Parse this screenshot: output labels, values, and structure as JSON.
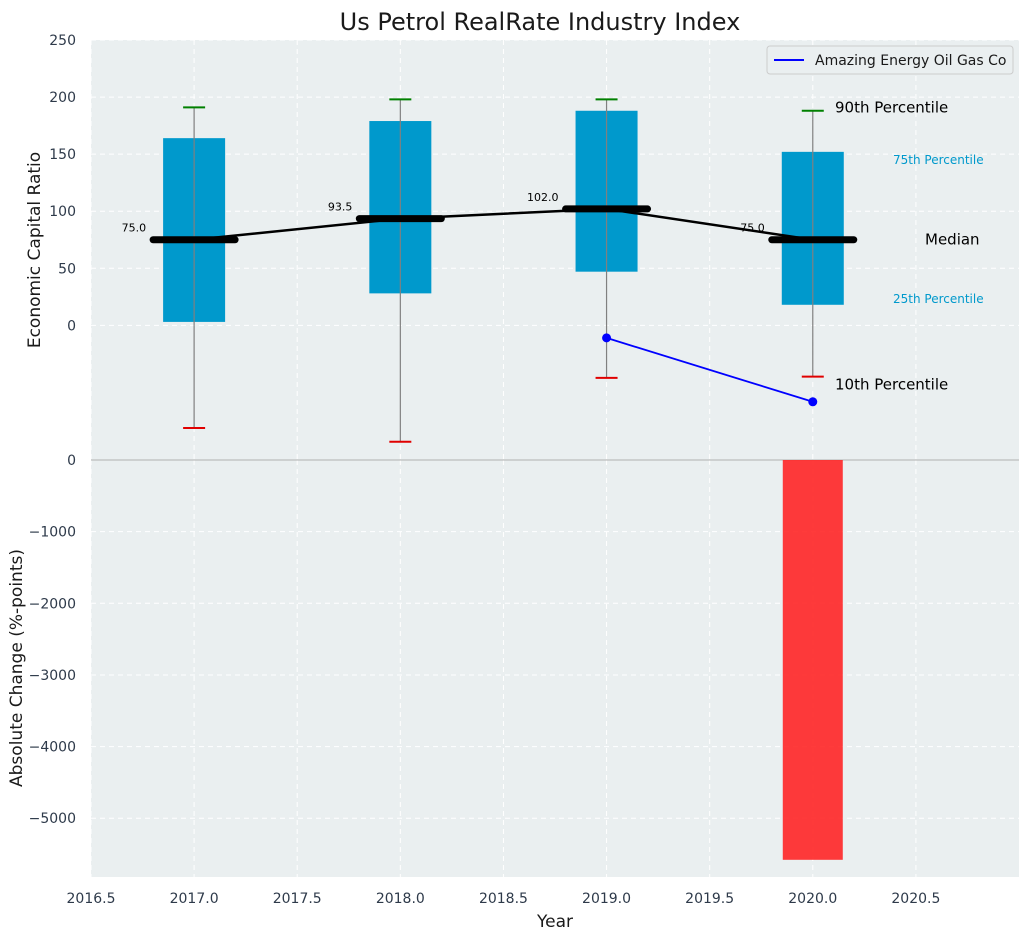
{
  "chart_data": {
    "type": "box",
    "title": "Us Petrol RealRate Industry Index",
    "xlabel": "Year",
    "colors": {
      "box": "#0099cc",
      "median": "#000000",
      "p90_cap": "#008000",
      "p10_cap": "#e00000",
      "company_line": "#0000ff",
      "change_bar": "#ff2020",
      "plot_bg": "#eaeff0",
      "annotation_small": "#0099cc"
    },
    "top_panel": {
      "ylabel": "Economic Capital Ratio",
      "ylim": [
        -118,
        250
      ],
      "yticks": [
        "0",
        "50",
        "100",
        "150",
        "200",
        "250"
      ],
      "xlim": [
        2016.5,
        2021.0
      ],
      "xticks": [
        "2016.5",
        "2017.0",
        "2017.5",
        "2018.0",
        "2018.5",
        "2019.0",
        "2019.5",
        "2020.0",
        "2020.5"
      ],
      "years": [
        2017,
        2018,
        2019,
        2020
      ],
      "p10": [
        -90,
        -102,
        -46,
        -45
      ],
      "p25": [
        3,
        28,
        47,
        18
      ],
      "median": [
        75.0,
        93.5,
        102.0,
        75.0
      ],
      "median_labels": [
        "75.0",
        "93.5",
        "102.0",
        "75.0"
      ],
      "p75": [
        164,
        179,
        188,
        152
      ],
      "p90": [
        191,
        198,
        198,
        188
      ],
      "company": {
        "name": "Amazing Energy Oil Gas Co",
        "x": [
          2019,
          2020
        ],
        "y": [
          -11,
          -67
        ]
      },
      "annotations": {
        "p90": "90th Percentile",
        "p75": "75th Percentile",
        "median": "Median",
        "p25": "25th Percentile",
        "p10": "10th Percentile"
      },
      "legend": [
        "Amazing Energy Oil Gas Co"
      ]
    },
    "bottom_panel": {
      "ylabel": "Absolute Change (%-points)",
      "ylim": [
        -5820,
        0
      ],
      "yticks": [
        "0",
        "−1000",
        "−2000",
        "−3000",
        "−4000",
        "−5000"
      ],
      "bars": [
        {
          "x": 2020,
          "value": -5580
        }
      ]
    }
  }
}
